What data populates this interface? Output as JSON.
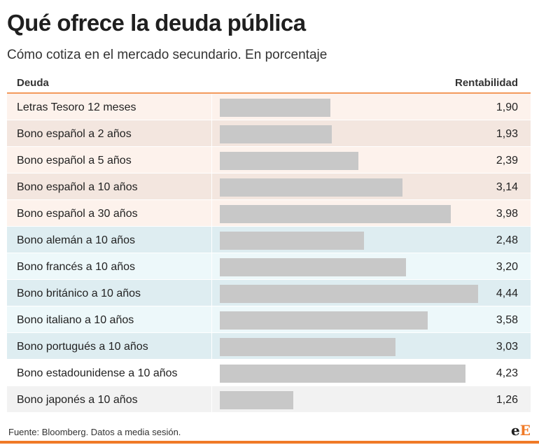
{
  "title": "Qué ofrece la deuda pública",
  "subtitle": "Cómo cotiza en el mercado secundario. En porcentaje",
  "footer": "Fuente: Bloomberg. Datos a media sesión.",
  "logo": {
    "part1": "e",
    "part2": "E"
  },
  "colors": {
    "accent": "#f07a27",
    "bar": "#c8c8c8",
    "spain_a": "#fdf2ec",
    "spain_b": "#f3e6df",
    "other_a": "#deedf1",
    "other_b": "#edf8fa",
    "japan": "#f2f2f2"
  },
  "chart_data": {
    "type": "bar",
    "orientation": "horizontal",
    "headers": {
      "category": "Deuda",
      "value": "Rentabilidad"
    },
    "xlim": [
      0,
      5
    ],
    "rows": [
      {
        "label": "Letras Tesoro 12 meses",
        "value": 1.9,
        "display": "1,90",
        "bg": "#fdf2ec"
      },
      {
        "label": "Bono español a 2 años",
        "value": 1.93,
        "display": "1,93",
        "bg": "#f3e6df"
      },
      {
        "label": "Bono español a 5 años",
        "value": 2.39,
        "display": "2,39",
        "bg": "#fdf2ec"
      },
      {
        "label": "Bono español a 10 años",
        "value": 3.14,
        "display": "3,14",
        "bg": "#f3e6df"
      },
      {
        "label": "Bono español a 30 años",
        "value": 3.98,
        "display": "3,98",
        "bg": "#fdf2ec"
      },
      {
        "label": "Bono alemán a 10 años",
        "value": 2.48,
        "display": "2,48",
        "bg": "#deedf1"
      },
      {
        "label": "Bono francés a 10 años",
        "value": 3.2,
        "display": "3,20",
        "bg": "#edf8fa"
      },
      {
        "label": "Bono británico a 10 años",
        "value": 4.44,
        "display": "4,44",
        "bg": "#deedf1"
      },
      {
        "label": "Bono italiano a 10 años",
        "value": 3.58,
        "display": "3,58",
        "bg": "#edf8fa"
      },
      {
        "label": "Bono portugués a 10 años",
        "value": 3.03,
        "display": "3,03",
        "bg": "#deedf1"
      },
      {
        "label": "Bono estadounidense a 10 años",
        "value": 4.23,
        "display": "4,23",
        "bg": "#ffffff"
      },
      {
        "label": "Bono japonés a 10 años",
        "value": 1.26,
        "display": "1,26",
        "bg": "#f2f2f2"
      }
    ]
  }
}
